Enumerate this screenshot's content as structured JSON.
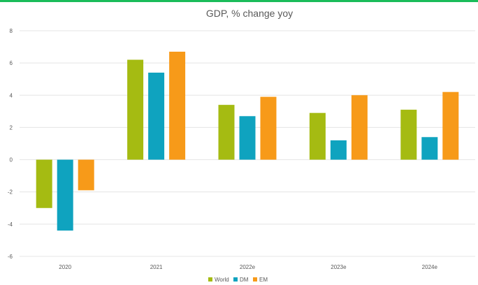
{
  "chart_data": {
    "type": "bar",
    "title": "GDP, % change yoy",
    "xlabel": "",
    "ylabel": "",
    "categories": [
      "2020",
      "2021",
      "2022e",
      "2023e",
      "2024e"
    ],
    "series": [
      {
        "name": "World",
        "color": "#A5BB12",
        "values": [
          -3.0,
          6.2,
          3.4,
          2.9,
          3.1
        ]
      },
      {
        "name": "DM",
        "color": "#0FA3BF",
        "values": [
          -4.4,
          5.4,
          2.7,
          1.2,
          1.4
        ]
      },
      {
        "name": "EM",
        "color": "#F79A19",
        "values": [
          -1.9,
          6.7,
          3.9,
          4.0,
          4.2
        ]
      }
    ],
    "ylim": [
      -6,
      8
    ],
    "yticks": [
      -6,
      -4,
      -2,
      0,
      2,
      4,
      6,
      8
    ],
    "grid": true,
    "legend_position": "bottom"
  },
  "colors": {
    "accent_line": "#1ABC5A",
    "grid": "#E4E4E4",
    "text": "#595959"
  }
}
